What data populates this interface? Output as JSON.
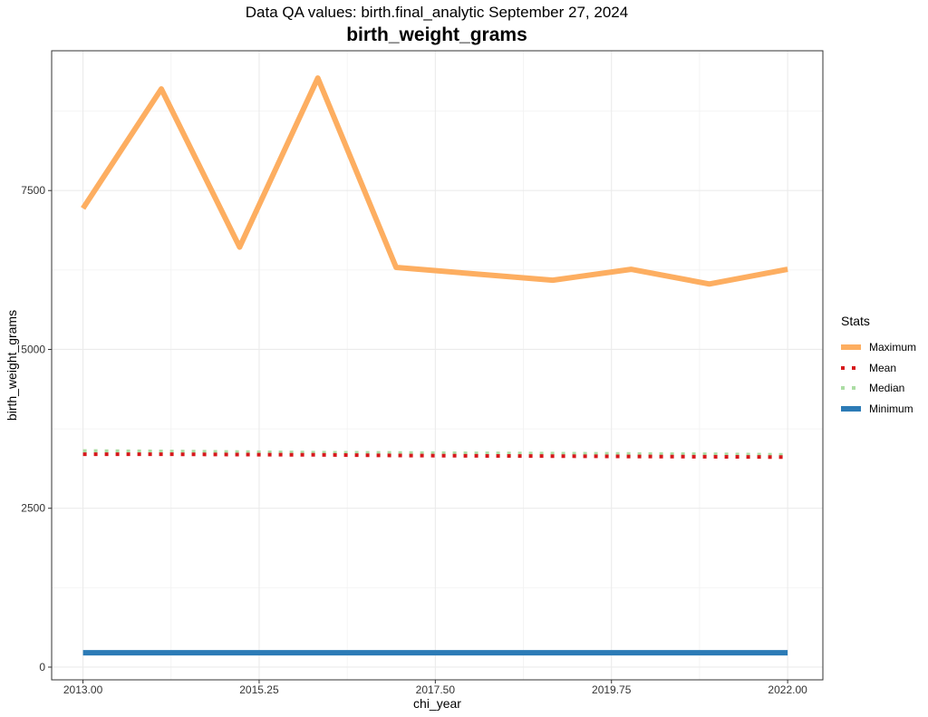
{
  "chart_data": {
    "type": "line",
    "subtitle": "Data QA values: birth.final_analytic September 27, 2024",
    "title": "birth_weight_grams",
    "xlabel": "chi_year",
    "ylabel": "birth_weight_grams",
    "xlim": [
      2012.6,
      2022.45
    ],
    "ylim": [
      -200,
      9700
    ],
    "x_ticks": [
      2013.0,
      2015.25,
      2017.5,
      2019.75,
      2022.0
    ],
    "x_tick_labels": [
      "2013.00",
      "2015.25",
      "2017.50",
      "2019.75",
      "2022.00"
    ],
    "y_ticks": [
      0,
      2500,
      5000,
      7500
    ],
    "y_tick_labels": [
      "0",
      "2500",
      "5000",
      "7500"
    ],
    "grid": true,
    "legend": {
      "title": "Stats",
      "position": "right"
    },
    "x": [
      2013,
      2014,
      2015,
      2016,
      2017,
      2018,
      2019,
      2020,
      2021,
      2022
    ],
    "series": [
      {
        "name": "Maximum",
        "color": "#fdae61",
        "style": "solid",
        "values": [
          7220,
          9100,
          6610,
          9270,
          6290,
          6190,
          6090,
          6260,
          6030,
          6260
        ]
      },
      {
        "name": "Mean",
        "color": "#d7191c",
        "style": "dotted",
        "values": [
          3350,
          3350,
          3345,
          3340,
          3330,
          3325,
          3320,
          3315,
          3310,
          3305
        ]
      },
      {
        "name": "Median",
        "color": "#abdda4",
        "style": "dotted",
        "values": [
          3400,
          3395,
          3385,
          3375,
          3370,
          3365,
          3360,
          3355,
          3350,
          3340
        ]
      },
      {
        "name": "Minimum",
        "color": "#2c7bb6",
        "style": "solid",
        "values": [
          227,
          227,
          227,
          227,
          227,
          227,
          227,
          227,
          227,
          227
        ]
      }
    ]
  }
}
